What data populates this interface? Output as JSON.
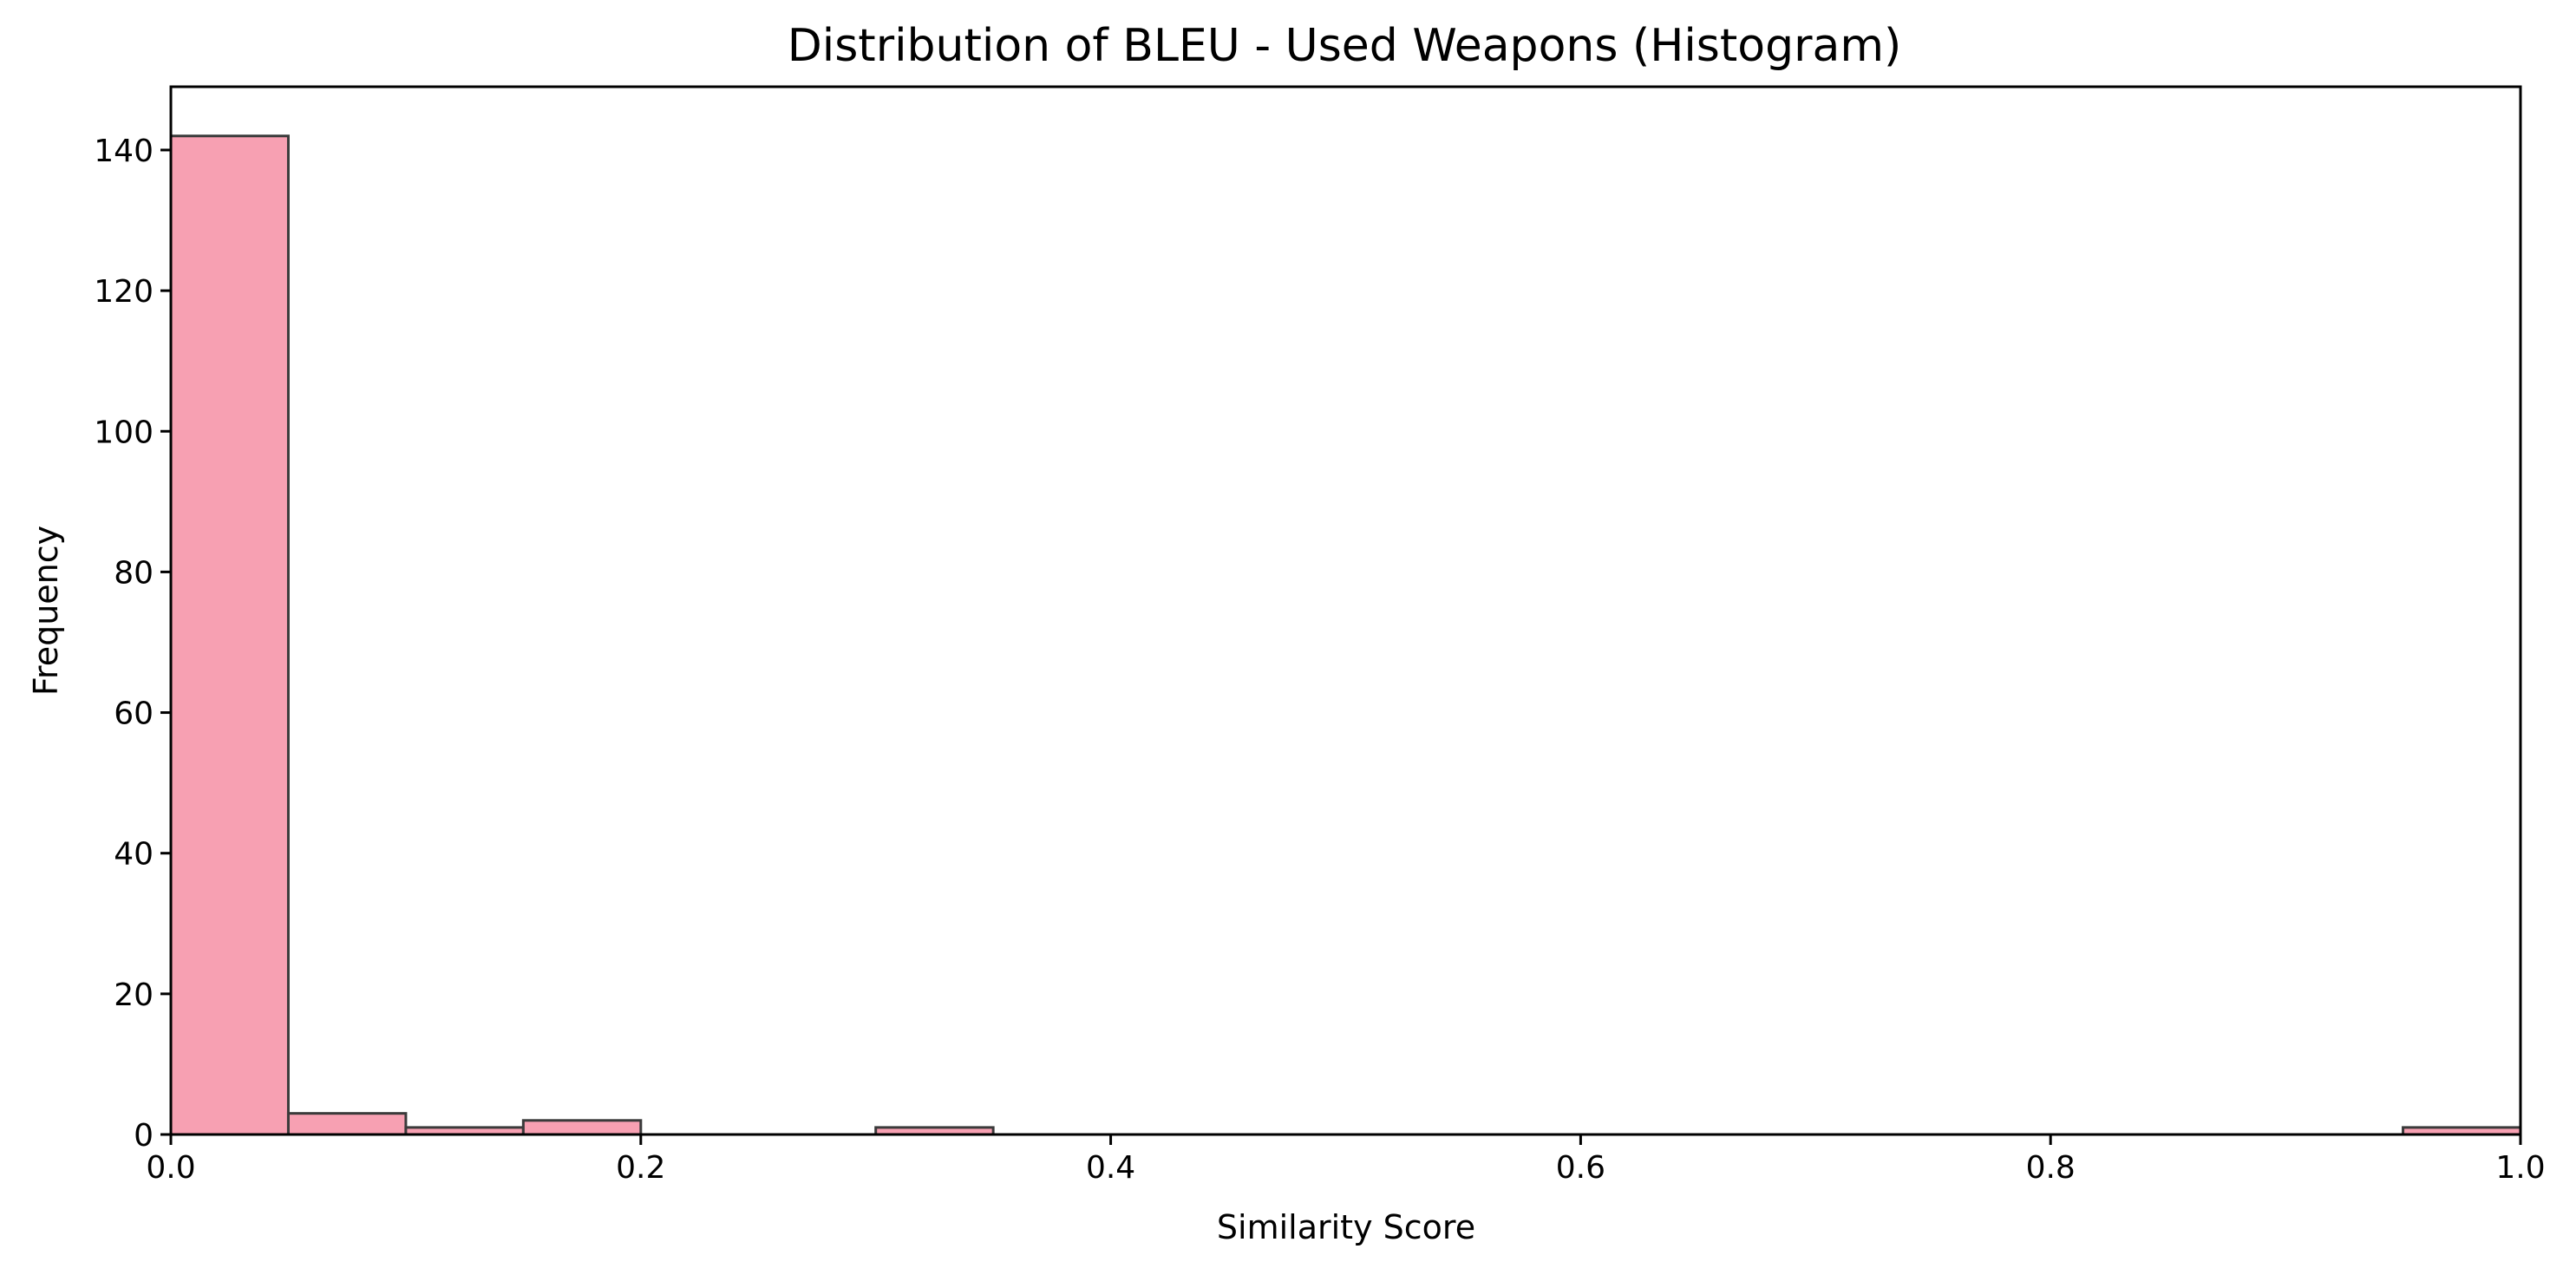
{
  "chart_data": {
    "type": "bar",
    "title": "Distribution of BLEU - Used Weapons (Histogram)",
    "xlabel": "Similarity Score",
    "ylabel": "Frequency",
    "xlim": [
      0,
      1
    ],
    "ylim": [
      0,
      149
    ],
    "xticks": [
      0,
      0.2,
      0.4,
      0.6,
      0.8,
      1.0
    ],
    "xtick_labels": [
      "0.0",
      "0.2",
      "0.4",
      "0.6",
      "0.8",
      "1.0"
    ],
    "yticks": [
      0,
      20,
      40,
      60,
      80,
      100,
      120,
      140
    ],
    "ytick_labels": [
      "0",
      "20",
      "40",
      "60",
      "80",
      "100",
      "120",
      "140"
    ],
    "bin_edges": [
      0.0,
      0.05,
      0.1,
      0.15,
      0.2,
      0.25,
      0.3,
      0.35,
      0.4,
      0.45,
      0.5,
      0.55,
      0.6,
      0.65,
      0.7,
      0.75,
      0.8,
      0.85,
      0.9,
      0.95,
      1.0
    ],
    "values": [
      142,
      3,
      1,
      2,
      0,
      0,
      1,
      0,
      0,
      0,
      0,
      0,
      0,
      0,
      0,
      0,
      0,
      0,
      0,
      1
    ],
    "grid": false,
    "bar_color": "#f7a0b2",
    "bar_edge_color": "#3a3a3a"
  }
}
